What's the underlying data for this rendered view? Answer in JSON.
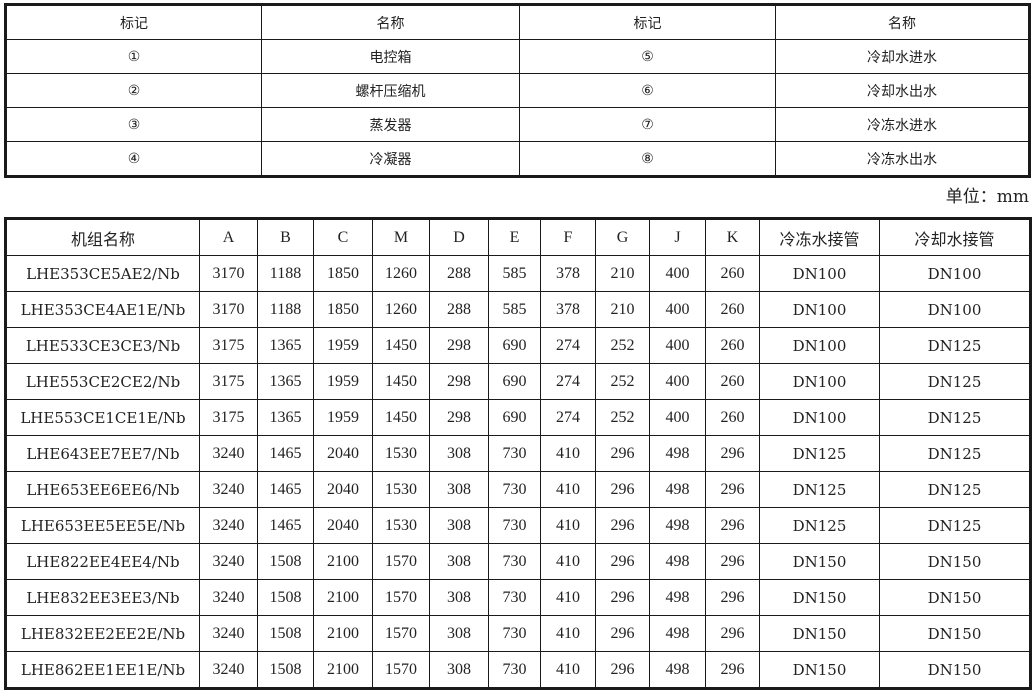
{
  "legend_table": {
    "headers": [
      "标记",
      "名称",
      "标记",
      "名称"
    ],
    "rows": [
      [
        "①",
        "电控箱",
        "⑤",
        "冷却水进水"
      ],
      [
        "②",
        "螺杆压缩机",
        "⑥",
        "冷却水出水"
      ],
      [
        "③",
        "蒸发器",
        "⑦",
        "冷冻水进水"
      ],
      [
        "④",
        "冷凝器",
        "⑧",
        "冷冻水出水"
      ]
    ]
  },
  "unit_label": "单位：mm",
  "dimension_table": {
    "headers": [
      "机组名称",
      "A",
      "B",
      "C",
      "M",
      "D",
      "E",
      "F",
      "G",
      "J",
      "K",
      "冷冻水接管",
      "冷却水接管"
    ],
    "rows": [
      [
        "LHE353CE5AE2/Nb",
        "3170",
        "1188",
        "1850",
        "1260",
        "288",
        "585",
        "378",
        "210",
        "400",
        "260",
        "DN100",
        "DN100"
      ],
      [
        "LHE353CE4AE1E/Nb",
        "3170",
        "1188",
        "1850",
        "1260",
        "288",
        "585",
        "378",
        "210",
        "400",
        "260",
        "DN100",
        "DN100"
      ],
      [
        "LHE533CE3CE3/Nb",
        "3175",
        "1365",
        "1959",
        "1450",
        "298",
        "690",
        "274",
        "252",
        "400",
        "260",
        "DN100",
        "DN125"
      ],
      [
        "LHE553CE2CE2/Nb",
        "3175",
        "1365",
        "1959",
        "1450",
        "298",
        "690",
        "274",
        "252",
        "400",
        "260",
        "DN100",
        "DN125"
      ],
      [
        "LHE553CE1CE1E/Nb",
        "3175",
        "1365",
        "1959",
        "1450",
        "298",
        "690",
        "274",
        "252",
        "400",
        "260",
        "DN100",
        "DN125"
      ],
      [
        "LHE643EE7EE7/Nb",
        "3240",
        "1465",
        "2040",
        "1530",
        "308",
        "730",
        "410",
        "296",
        "498",
        "296",
        "DN125",
        "DN125"
      ],
      [
        "LHE653EE6EE6/Nb",
        "3240",
        "1465",
        "2040",
        "1530",
        "308",
        "730",
        "410",
        "296",
        "498",
        "296",
        "DN125",
        "DN125"
      ],
      [
        "LHE653EE5EE5E/Nb",
        "3240",
        "1465",
        "2040",
        "1530",
        "308",
        "730",
        "410",
        "296",
        "498",
        "296",
        "DN125",
        "DN125"
      ],
      [
        "LHE822EE4EE4/Nb",
        "3240",
        "1508",
        "2100",
        "1570",
        "308",
        "730",
        "410",
        "296",
        "498",
        "296",
        "DN150",
        "DN150"
      ],
      [
        "LHE832EE3EE3/Nb",
        "3240",
        "1508",
        "2100",
        "1570",
        "308",
        "730",
        "410",
        "296",
        "498",
        "296",
        "DN150",
        "DN150"
      ],
      [
        "LHE832EE2EE2E/Nb",
        "3240",
        "1508",
        "2100",
        "1570",
        "308",
        "730",
        "410",
        "296",
        "498",
        "296",
        "DN150",
        "DN150"
      ],
      [
        "LHE862EE1EE1E/Nb",
        "3240",
        "1508",
        "2100",
        "1570",
        "308",
        "730",
        "410",
        "296",
        "498",
        "296",
        "DN150",
        "DN150"
      ]
    ]
  }
}
